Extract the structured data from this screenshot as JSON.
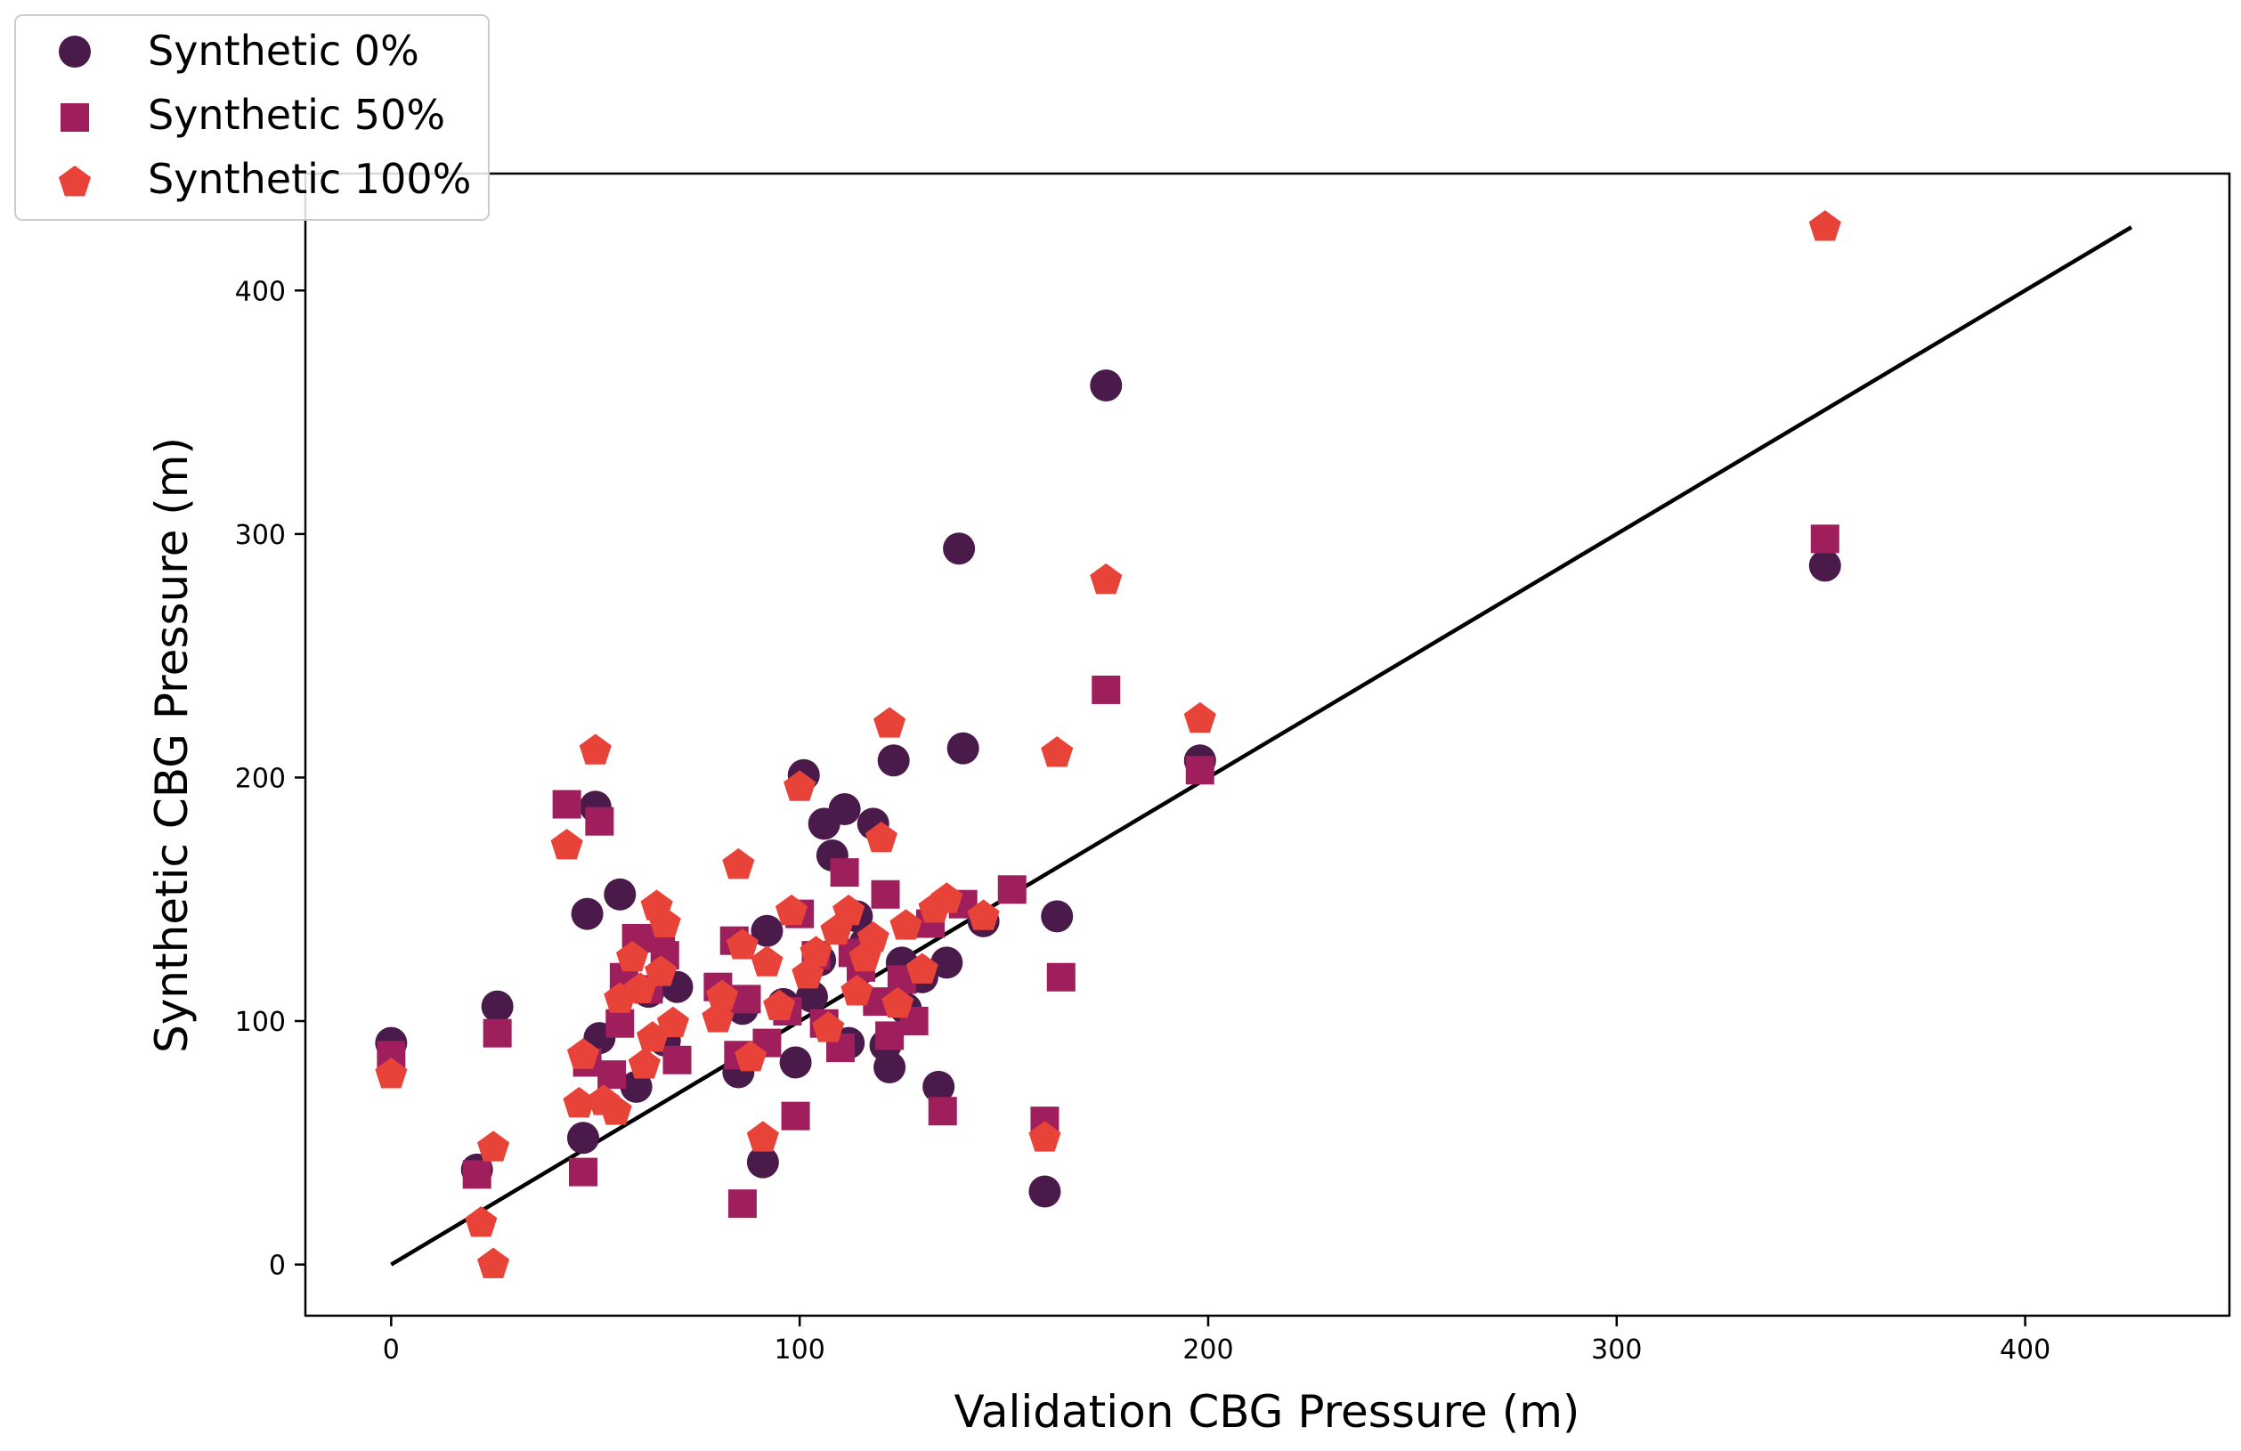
{
  "chart_data": {
    "type": "scatter",
    "title": "",
    "xlabel": "Validation CBG Pressure (m)",
    "ylabel": "Synthetic CBG Pressure (m)",
    "xlim": [
      -21,
      450
    ],
    "ylim": [
      -21,
      448
    ],
    "xticks": [
      0,
      100,
      200,
      300,
      400
    ],
    "yticks": [
      0,
      100,
      200,
      300,
      400
    ],
    "grid": false,
    "legend_position": "top-left",
    "reference_line": {
      "x": [
        0,
        426
      ],
      "y": [
        0,
        426
      ],
      "color": "#000000"
    },
    "series": [
      {
        "name": "Synthetic 0%",
        "marker": "circle",
        "color": "#4a1a4a",
        "points": [
          [
            0,
            91
          ],
          [
            21,
            39
          ],
          [
            26,
            106
          ],
          [
            47,
            52
          ],
          [
            48,
            144
          ],
          [
            50,
            188
          ],
          [
            51,
            93
          ],
          [
            56,
            152
          ],
          [
            60,
            73
          ],
          [
            63,
            112
          ],
          [
            67,
            92
          ],
          [
            70,
            114
          ],
          [
            85,
            79
          ],
          [
            86,
            105
          ],
          [
            91,
            42
          ],
          [
            92,
            137
          ],
          [
            96,
            107
          ],
          [
            99,
            83
          ],
          [
            101,
            201
          ],
          [
            103,
            110
          ],
          [
            106,
            181
          ],
          [
            108,
            168
          ],
          [
            111,
            187
          ],
          [
            112,
            91
          ],
          [
            114,
            143
          ],
          [
            118,
            181
          ],
          [
            121,
            90
          ],
          [
            122,
            81
          ],
          [
            123,
            207
          ],
          [
            126,
            105
          ],
          [
            128,
            118
          ],
          [
            130,
            118
          ],
          [
            134,
            73
          ],
          [
            136,
            124
          ],
          [
            139,
            294
          ],
          [
            140,
            212
          ],
          [
            145,
            141
          ],
          [
            160,
            30
          ],
          [
            163,
            143
          ],
          [
            175,
            361
          ],
          [
            198,
            207
          ],
          [
            351,
            287
          ],
          [
            105,
            125
          ],
          [
            116,
            132
          ],
          [
            125,
            124
          ]
        ]
      },
      {
        "name": "Synthetic 50%",
        "marker": "square",
        "color": "#9e1f5c",
        "points": [
          [
            0,
            86
          ],
          [
            21,
            37
          ],
          [
            26,
            95
          ],
          [
            43,
            189
          ],
          [
            47,
            38
          ],
          [
            48,
            83
          ],
          [
            51,
            182
          ],
          [
            54,
            78
          ],
          [
            56,
            99
          ],
          [
            57,
            118
          ],
          [
            60,
            134
          ],
          [
            63,
            113
          ],
          [
            66,
            134
          ],
          [
            67,
            127
          ],
          [
            70,
            84
          ],
          [
            80,
            114
          ],
          [
            84,
            133
          ],
          [
            85,
            86
          ],
          [
            86,
            25
          ],
          [
            87,
            109
          ],
          [
            92,
            91
          ],
          [
            97,
            104
          ],
          [
            99,
            61
          ],
          [
            100,
            144
          ],
          [
            104,
            127
          ],
          [
            106,
            99
          ],
          [
            110,
            89
          ],
          [
            111,
            161
          ],
          [
            113,
            128
          ],
          [
            115,
            122
          ],
          [
            119,
            108
          ],
          [
            121,
            152
          ],
          [
            122,
            94
          ],
          [
            125,
            117
          ],
          [
            128,
            100
          ],
          [
            132,
            140
          ],
          [
            135,
            63
          ],
          [
            140,
            148
          ],
          [
            152,
            154
          ],
          [
            160,
            59
          ],
          [
            164,
            118
          ],
          [
            175,
            236
          ],
          [
            198,
            203
          ],
          [
            351,
            298
          ]
        ]
      },
      {
        "name": "Synthetic 100%",
        "marker": "pentagon",
        "color": "#e84339",
        "points": [
          [
            0,
            78
          ],
          [
            22,
            17
          ],
          [
            25,
            0
          ],
          [
            25,
            48
          ],
          [
            43,
            172
          ],
          [
            46,
            66
          ],
          [
            47,
            86
          ],
          [
            50,
            211
          ],
          [
            52,
            67
          ],
          [
            55,
            63
          ],
          [
            56,
            109
          ],
          [
            59,
            126
          ],
          [
            61,
            113
          ],
          [
            62,
            82
          ],
          [
            64,
            93
          ],
          [
            65,
            147
          ],
          [
            66,
            120
          ],
          [
            67,
            140
          ],
          [
            69,
            99
          ],
          [
            80,
            101
          ],
          [
            81,
            110
          ],
          [
            85,
            164
          ],
          [
            86,
            131
          ],
          [
            88,
            85
          ],
          [
            91,
            52
          ],
          [
            92,
            124
          ],
          [
            95,
            106
          ],
          [
            98,
            145
          ],
          [
            100,
            196
          ],
          [
            102,
            119
          ],
          [
            104,
            128
          ],
          [
            107,
            97
          ],
          [
            109,
            137
          ],
          [
            112,
            145
          ],
          [
            114,
            112
          ],
          [
            116,
            126
          ],
          [
            118,
            134
          ],
          [
            120,
            175
          ],
          [
            122,
            222
          ],
          [
            124,
            107
          ],
          [
            126,
            139
          ],
          [
            130,
            121
          ],
          [
            133,
            146
          ],
          [
            136,
            150
          ],
          [
            145,
            143
          ],
          [
            160,
            52
          ],
          [
            163,
            210
          ],
          [
            175,
            281
          ],
          [
            198,
            224
          ],
          [
            351,
            426
          ]
        ]
      }
    ]
  }
}
